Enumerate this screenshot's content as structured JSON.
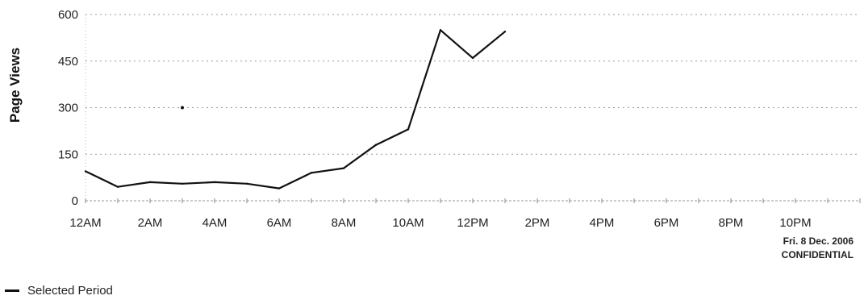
{
  "chart_data": {
    "type": "line",
    "ylabel": "Page Views",
    "ylim": [
      0,
      600
    ],
    "y_ticks": [
      "0",
      "150",
      "300",
      "450",
      "600"
    ],
    "x_ticks": [
      "12AM",
      "2AM",
      "4AM",
      "6AM",
      "8AM",
      "10AM",
      "12PM",
      "2PM",
      "4PM",
      "6PM",
      "8PM",
      "10PM"
    ],
    "grid": true,
    "series": [
      {
        "name": "Selected Period",
        "color": "#111111",
        "x": [
          "12AM",
          "1AM",
          "2AM",
          "3AM",
          "4AM",
          "5AM",
          "6AM",
          "7AM",
          "8AM",
          "9AM",
          "10AM",
          "11AM",
          "12PM",
          "1PM"
        ],
        "values": [
          95,
          45,
          60,
          55,
          60,
          55,
          40,
          90,
          105,
          180,
          230,
          550,
          460,
          545
        ]
      }
    ],
    "stray_point": {
      "x": "3AM",
      "y": 300
    },
    "legend_position": "bottom-left"
  },
  "footer": {
    "date": "Fri. 8 Dec. 2006",
    "confidential": "CONFIDENTIAL"
  },
  "legend": {
    "label": "Selected Period"
  }
}
